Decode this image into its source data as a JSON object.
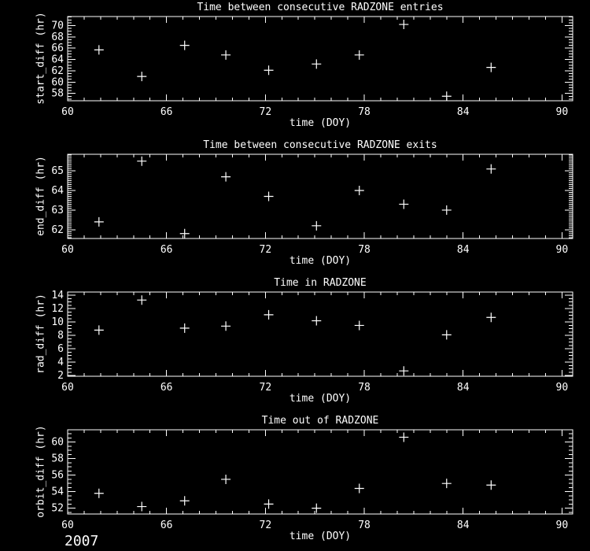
{
  "window": {
    "background_color": "#000000",
    "foreground_color": "#ffffff",
    "description": "Four stacked scatter plots of RADZONE timing statistics"
  },
  "footer": {
    "year_label": "2007"
  },
  "chart_data": [
    {
      "type": "scatter",
      "marker": "plus",
      "marker_color": "#ffffff",
      "title": "Time between consecutive RADZONE entries",
      "xlabel": "time (DOY)",
      "ylabel": "start_diff (hr)",
      "x": [
        61.9,
        64.5,
        67.1,
        69.6,
        72.2,
        75.1,
        77.7,
        80.4,
        83.0,
        85.7
      ],
      "y": [
        65.7,
        61.0,
        66.5,
        64.8,
        62.1,
        63.2,
        64.8,
        70.2,
        57.5,
        62.6
      ],
      "xlim": [
        60,
        90.65
      ],
      "ylim": [
        56.7,
        71.6
      ],
      "xticks": [
        60,
        66,
        72,
        78,
        84,
        90
      ],
      "yticks": [
        58,
        60,
        62,
        64,
        66,
        68,
        70
      ],
      "x_minor_step": 1,
      "y_minor_step": 0.5,
      "grid": false,
      "legend": null
    },
    {
      "type": "scatter",
      "marker": "plus",
      "marker_color": "#ffffff",
      "title": "Time between consecutive RADZONE exits",
      "xlabel": "time (DOY)",
      "ylabel": "end_diff (hr)",
      "x": [
        61.9,
        64.5,
        67.1,
        69.6,
        72.2,
        75.1,
        77.7,
        80.4,
        83.0,
        85.7
      ],
      "y": [
        62.4,
        65.5,
        61.8,
        64.7,
        63.7,
        62.2,
        64.0,
        63.3,
        63.0,
        65.1
      ],
      "xlim": [
        60,
        90.65
      ],
      "ylim": [
        61.55,
        65.85
      ],
      "xticks": [
        60,
        66,
        72,
        78,
        84,
        90
      ],
      "yticks": [
        62,
        63,
        64,
        65
      ],
      "x_minor_step": 1,
      "y_minor_step": 0.1,
      "grid": false,
      "legend": null
    },
    {
      "type": "scatter",
      "marker": "plus",
      "marker_color": "#ffffff",
      "title": "Time in RADZONE",
      "xlabel": "time (DOY)",
      "ylabel": "rad_diff (hr)",
      "x": [
        61.9,
        64.5,
        67.1,
        69.6,
        72.2,
        75.1,
        77.7,
        80.4,
        83.0,
        85.7
      ],
      "y": [
        8.8,
        13.3,
        9.1,
        9.4,
        11.1,
        10.2,
        9.5,
        2.7,
        8.1,
        10.7
      ],
      "xlim": [
        60,
        90.65
      ],
      "ylim": [
        1.9,
        14.5
      ],
      "xticks": [
        60,
        66,
        72,
        78,
        84,
        90
      ],
      "yticks": [
        2,
        4,
        6,
        8,
        10,
        12,
        14
      ],
      "x_minor_step": 1,
      "y_minor_step": 0.5,
      "grid": false,
      "legend": null
    },
    {
      "type": "scatter",
      "marker": "plus",
      "marker_color": "#ffffff",
      "title": "Time out of RADZONE",
      "xlabel": "time (DOY)",
      "ylabel": "orbit_diff (hr)",
      "x": [
        61.9,
        64.5,
        67.1,
        69.6,
        72.2,
        75.1,
        77.7,
        80.4,
        83.0,
        85.7
      ],
      "y": [
        53.8,
        52.2,
        52.9,
        55.5,
        52.5,
        52.0,
        54.4,
        60.6,
        55.0,
        54.8
      ],
      "xlim": [
        60,
        90.65
      ],
      "ylim": [
        51.3,
        61.5
      ],
      "xticks": [
        60,
        66,
        72,
        78,
        84,
        90
      ],
      "yticks": [
        52,
        54,
        56,
        58,
        60
      ],
      "x_minor_step": 1,
      "y_minor_step": 0.5,
      "grid": false,
      "legend": null
    }
  ]
}
